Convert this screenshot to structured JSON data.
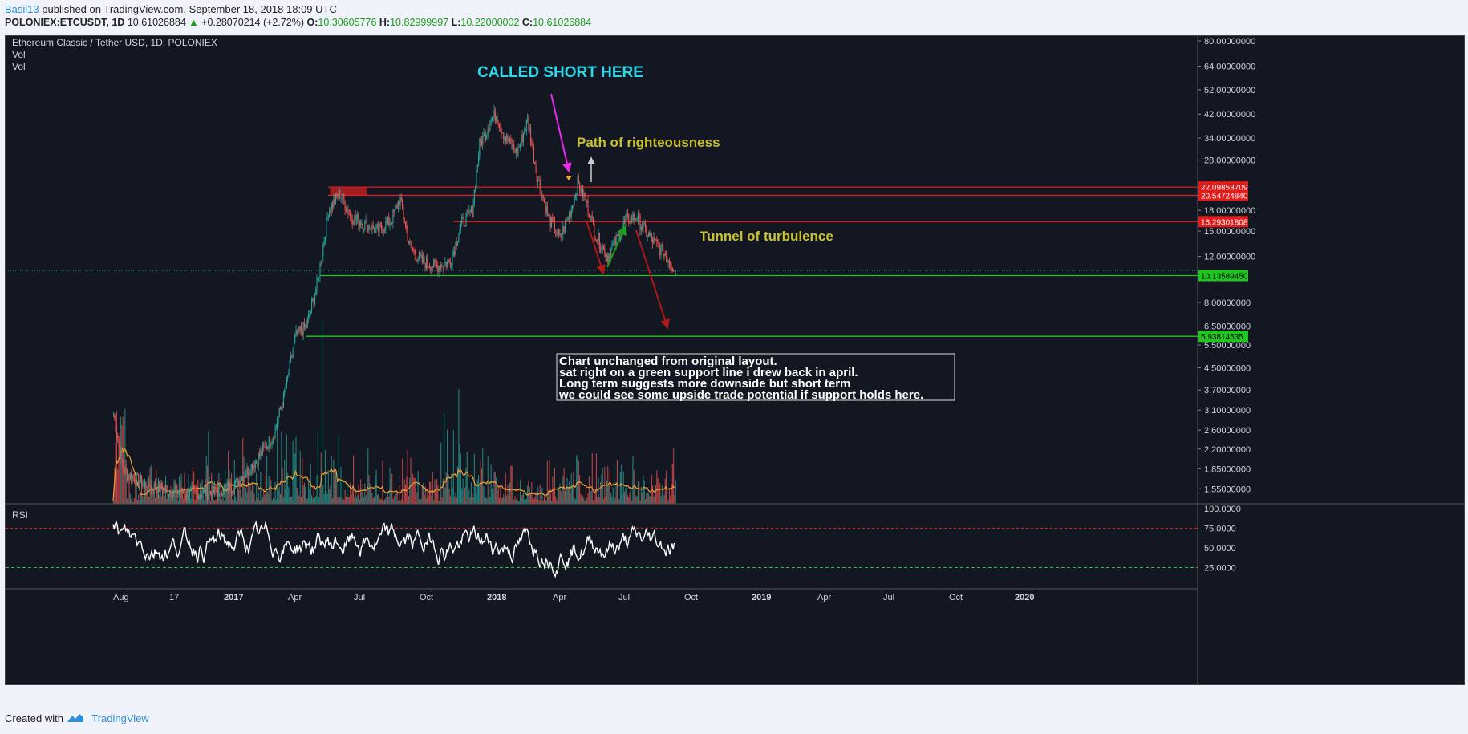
{
  "header": {
    "user": "Basil13",
    "published": " published on TradingView.com, September 18, 2018 18:09 UTC",
    "symbol": "POLONIEX:ETCUSDT, 1D",
    "last": "10.61026884",
    "change": "+0.28070214 (+2.72%)",
    "o_label": "O:",
    "o_value": "10.30605776",
    "h_label": "H:",
    "h_value": "10.82999997",
    "l_label": "L:",
    "l_value": "10.22000002",
    "c_label": "C:",
    "c_value": "10.61026884"
  },
  "legend": {
    "title": "Ethereum Classic / Tether USD, 1D, POLONIEX",
    "vol1": "Vol",
    "vol2": "Vol",
    "rsi": "RSI"
  },
  "annotations": {
    "called_short": "CALLED SHORT HERE",
    "path": "Path of righteousness",
    "tunnel": "Tunnel of turbulence",
    "note_lines": [
      "Chart unchanged from original layout.",
      "sat right on a green support line i drew back in april.",
      "Long term suggests more downside but short term",
      "we could see some upside trade potential if support holds here."
    ]
  },
  "footer": {
    "created": "Created with",
    "brand": "TradingView"
  },
  "colors": {
    "bg": "#131722",
    "up": "#26a69a",
    "down": "#ef5350",
    "support": "#1ec71e",
    "resistance": "#e21b1b",
    "rsi_line": "#ffffff",
    "vol_ma": "#f0a030"
  },
  "chart_data": {
    "type": "candlestick",
    "price_axis": {
      "scale": "log",
      "ticks": [
        80,
        64,
        52,
        42,
        34,
        28,
        22.09853709,
        20.5472484,
        18,
        16.29301808,
        15,
        12,
        10.1358945,
        8,
        6.5,
        5.93814535,
        5.5,
        4.5,
        3.7,
        3.1,
        2.6,
        2.2,
        1.85,
        1.55
      ],
      "tick_labels": [
        "80.00000000",
        "64.00000000",
        "52.00000000",
        "42.00000000",
        "34.00000000",
        "28.00000000",
        "22.09853709",
        "20.54724840",
        "18.00000000",
        "16.29301808",
        "15.00000000",
        "12.00000000",
        "10.13589450",
        "8.00000000",
        "6.50000000",
        "5.93814535",
        "5.50000000",
        "4.50000000",
        "3.70000000",
        "3.10000000",
        "2.60000000",
        "2.20000000",
        "1.85000000",
        "1.55000000"
      ],
      "highlight_labels": [
        "22.09853709",
        "20.54724840",
        "16.29301808",
        "10.13589450",
        "5.93814535"
      ]
    },
    "time_axis": [
      "Aug",
      "17",
      "2017",
      "Apr",
      "Jul",
      "Oct",
      "2018",
      "Apr",
      "Jul",
      "Oct",
      "2019",
      "Apr",
      "Jul",
      "Oct",
      "2020"
    ],
    "price_path": [
      [
        "2016-08-01",
        3.0
      ],
      [
        "2016-08-15",
        1.8
      ],
      [
        "2016-09-15",
        1.6
      ],
      [
        "2016-11-01",
        1.5
      ],
      [
        "2016-12-15",
        1.5
      ],
      [
        "2017-01-15",
        1.6
      ],
      [
        "2017-02-15",
        2.0
      ],
      [
        "2017-03-10",
        2.5
      ],
      [
        "2017-03-25",
        3.5
      ],
      [
        "2017-04-10",
        6.0
      ],
      [
        "2017-04-25",
        6.5
      ],
      [
        "2017-05-10",
        9.5
      ],
      [
        "2017-05-25",
        18.0
      ],
      [
        "2017-06-10",
        21.0
      ],
      [
        "2017-06-25",
        17.0
      ],
      [
        "2017-07-15",
        16.0
      ],
      [
        "2017-08-01",
        15.0
      ],
      [
        "2017-08-20",
        16.5
      ],
      [
        "2017-09-01",
        20.0
      ],
      [
        "2017-09-15",
        13.0
      ],
      [
        "2017-10-01",
        11.5
      ],
      [
        "2017-10-20",
        11.0
      ],
      [
        "2017-11-10",
        11.5
      ],
      [
        "2017-11-25",
        16.0
      ],
      [
        "2017-12-10",
        18.0
      ],
      [
        "2017-12-20",
        32.0
      ],
      [
        "2018-01-05",
        40.0
      ],
      [
        "2018-01-12",
        42.0
      ],
      [
        "2018-01-25",
        34.0
      ],
      [
        "2018-02-10",
        30.0
      ],
      [
        "2018-02-25",
        40.0
      ],
      [
        "2018-03-10",
        24.0
      ],
      [
        "2018-03-25",
        17.0
      ],
      [
        "2018-04-10",
        14.0
      ],
      [
        "2018-04-25",
        18.0
      ],
      [
        "2018-05-05",
        23.0
      ],
      [
        "2018-05-15",
        20.0
      ],
      [
        "2018-05-30",
        14.5
      ],
      [
        "2018-06-15",
        12.0
      ],
      [
        "2018-06-28",
        14.0
      ],
      [
        "2018-07-10",
        16.5
      ],
      [
        "2018-07-25",
        17.0
      ],
      [
        "2018-08-10",
        14.5
      ],
      [
        "2018-08-25",
        13.0
      ],
      [
        "2018-09-05",
        12.0
      ],
      [
        "2018-09-18",
        10.6
      ]
    ],
    "horizontal_lines": [
      {
        "price": 22.09853709,
        "color": "red",
        "from": "2017-05-25"
      },
      {
        "price": 20.5472484,
        "color": "red",
        "from": "2017-05-25"
      },
      {
        "price": 16.29301808,
        "color": "red",
        "from": "2017-11-15"
      },
      {
        "price": 10.1358945,
        "color": "green",
        "from": "2017-05-15"
      },
      {
        "price": 5.93814535,
        "color": "green",
        "from": "2017-04-25"
      }
    ],
    "rsi": {
      "axis_labels": [
        "100.0000",
        "75.0000",
        "50.0000",
        "25.0000"
      ],
      "overbought": 75,
      "oversold": 25,
      "ylim": [
        0,
        100
      ]
    }
  }
}
